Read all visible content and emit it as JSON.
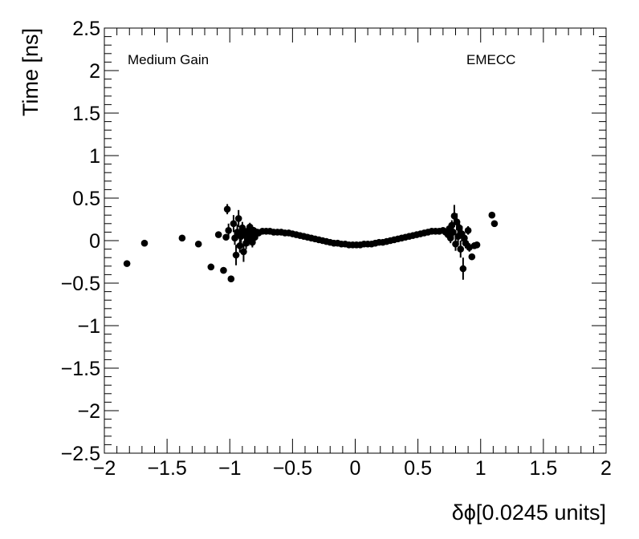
{
  "chart_data": {
    "type": "scatter",
    "xlabel": "δϕ[0.0245 units]",
    "ylabel": "Time [ns]",
    "xlim": [
      -2,
      2
    ],
    "ylim": [
      -2.5,
      2.5
    ],
    "x_ticks": [
      "−2",
      "−1.5",
      "−1",
      "−0.5",
      "0",
      "0.5",
      "1",
      "1.5",
      "2"
    ],
    "y_ticks": [
      "−2.5",
      "−2",
      "−1.5",
      "−1",
      "−0.5",
      "0",
      "0.5",
      "1",
      "1.5",
      "2",
      "2.5"
    ],
    "annotations": {
      "left": "Medium Gain",
      "right": "EMECC"
    },
    "grid": false,
    "marker_color": "#000000",
    "points": [
      {
        "x": -1.82,
        "y": -0.27,
        "err": 0
      },
      {
        "x": -1.68,
        "y": -0.03,
        "err": 0
      },
      {
        "x": -1.38,
        "y": 0.03,
        "err": 0
      },
      {
        "x": -1.25,
        "y": -0.04,
        "err": 0
      },
      {
        "x": -1.15,
        "y": -0.31,
        "err": 0
      },
      {
        "x": -1.09,
        "y": 0.07,
        "err": 0
      },
      {
        "x": -1.05,
        "y": -0.35,
        "err": 0
      },
      {
        "x": -1.03,
        "y": 0.04,
        "err": 0
      },
      {
        "x": -1.02,
        "y": 0.37,
        "err": 0.06
      },
      {
        "x": -1.01,
        "y": 0.12,
        "err": 0.08
      },
      {
        "x": -0.99,
        "y": -0.45,
        "err": 0
      },
      {
        "x": -0.97,
        "y": 0.2,
        "err": 0.1
      },
      {
        "x": -0.96,
        "y": 0.03,
        "err": 0.08
      },
      {
        "x": -0.95,
        "y": -0.17,
        "err": 0.12
      },
      {
        "x": -0.94,
        "y": 0.1,
        "err": 0.09
      },
      {
        "x": -0.93,
        "y": 0.26,
        "err": 0.1
      },
      {
        "x": -0.92,
        "y": -0.06,
        "err": 0.08
      },
      {
        "x": -0.91,
        "y": 0.05,
        "err": 0.09
      },
      {
        "x": -0.9,
        "y": 0.15,
        "err": 0.07
      },
      {
        "x": -0.89,
        "y": -0.13,
        "err": 0.12
      },
      {
        "x": -0.88,
        "y": 0.08,
        "err": 0.08
      },
      {
        "x": -0.87,
        "y": -0.03,
        "err": 0.07
      },
      {
        "x": -0.86,
        "y": 0.11,
        "err": 0.06
      },
      {
        "x": -0.85,
        "y": 0.02,
        "err": 0.08
      },
      {
        "x": -0.84,
        "y": 0.16,
        "err": 0.05
      },
      {
        "x": -0.83,
        "y": 0.06,
        "err": 0.05
      },
      {
        "x": -0.82,
        "y": -0.02,
        "err": 0.06
      },
      {
        "x": -0.81,
        "y": 0.12,
        "err": 0.04
      },
      {
        "x": -0.8,
        "y": 0.04,
        "err": 0.05
      },
      {
        "x": -0.79,
        "y": 0.08,
        "err": 0.03
      },
      {
        "x": -0.78,
        "y": 0.1,
        "err": 0.03
      },
      {
        "x": -0.77,
        "y": 0.09,
        "err": 0.02
      },
      {
        "x": -0.74,
        "y": 0.11,
        "err": 0
      },
      {
        "x": -0.71,
        "y": 0.11,
        "err": 0
      },
      {
        "x": -0.68,
        "y": 0.11,
        "err": 0
      },
      {
        "x": -0.65,
        "y": 0.1,
        "err": 0
      },
      {
        "x": -0.62,
        "y": 0.1,
        "err": 0
      },
      {
        "x": -0.59,
        "y": 0.1,
        "err": 0
      },
      {
        "x": -0.56,
        "y": 0.09,
        "err": 0
      },
      {
        "x": -0.53,
        "y": 0.09,
        "err": 0
      },
      {
        "x": -0.5,
        "y": 0.08,
        "err": 0
      },
      {
        "x": -0.47,
        "y": 0.07,
        "err": 0
      },
      {
        "x": -0.44,
        "y": 0.06,
        "err": 0
      },
      {
        "x": -0.41,
        "y": 0.05,
        "err": 0
      },
      {
        "x": -0.38,
        "y": 0.04,
        "err": 0
      },
      {
        "x": -0.35,
        "y": 0.03,
        "err": 0
      },
      {
        "x": -0.32,
        "y": 0.02,
        "err": 0
      },
      {
        "x": -0.29,
        "y": 0.01,
        "err": 0
      },
      {
        "x": -0.26,
        "y": 0.0,
        "err": 0
      },
      {
        "x": -0.23,
        "y": -0.01,
        "err": 0
      },
      {
        "x": -0.2,
        "y": -0.02,
        "err": 0
      },
      {
        "x": -0.17,
        "y": -0.03,
        "err": 0
      },
      {
        "x": -0.14,
        "y": -0.03,
        "err": 0
      },
      {
        "x": -0.11,
        "y": -0.04,
        "err": 0
      },
      {
        "x": -0.08,
        "y": -0.04,
        "err": 0
      },
      {
        "x": -0.05,
        "y": -0.05,
        "err": 0
      },
      {
        "x": -0.02,
        "y": -0.05,
        "err": 0
      },
      {
        "x": 0.01,
        "y": -0.05,
        "err": 0
      },
      {
        "x": 0.04,
        "y": -0.05,
        "err": 0
      },
      {
        "x": 0.07,
        "y": -0.04,
        "err": 0
      },
      {
        "x": 0.1,
        "y": -0.04,
        "err": 0
      },
      {
        "x": 0.13,
        "y": -0.04,
        "err": 0
      },
      {
        "x": 0.16,
        "y": -0.03,
        "err": 0
      },
      {
        "x": 0.19,
        "y": -0.02,
        "err": 0
      },
      {
        "x": 0.22,
        "y": -0.02,
        "err": 0
      },
      {
        "x": 0.25,
        "y": -0.01,
        "err": 0
      },
      {
        "x": 0.28,
        "y": 0.0,
        "err": 0
      },
      {
        "x": 0.31,
        "y": 0.01,
        "err": 0
      },
      {
        "x": 0.34,
        "y": 0.02,
        "err": 0
      },
      {
        "x": 0.37,
        "y": 0.03,
        "err": 0
      },
      {
        "x": 0.4,
        "y": 0.04,
        "err": 0
      },
      {
        "x": 0.43,
        "y": 0.05,
        "err": 0
      },
      {
        "x": 0.46,
        "y": 0.06,
        "err": 0
      },
      {
        "x": 0.49,
        "y": 0.07,
        "err": 0
      },
      {
        "x": 0.52,
        "y": 0.08,
        "err": 0
      },
      {
        "x": 0.55,
        "y": 0.09,
        "err": 0
      },
      {
        "x": 0.58,
        "y": 0.1,
        "err": 0
      },
      {
        "x": 0.61,
        "y": 0.11,
        "err": 0
      },
      {
        "x": 0.64,
        "y": 0.11,
        "err": 0
      },
      {
        "x": 0.67,
        "y": 0.11,
        "err": 0
      },
      {
        "x": 0.7,
        "y": 0.12,
        "err": 0.02
      },
      {
        "x": 0.72,
        "y": 0.1,
        "err": 0.03
      },
      {
        "x": 0.74,
        "y": 0.07,
        "err": 0.04
      },
      {
        "x": 0.75,
        "y": 0.14,
        "err": 0.05
      },
      {
        "x": 0.76,
        "y": 0.03,
        "err": 0.06
      },
      {
        "x": 0.77,
        "y": 0.18,
        "err": 0.06
      },
      {
        "x": 0.78,
        "y": 0.1,
        "err": 0.08
      },
      {
        "x": 0.79,
        "y": 0.29,
        "err": 0.13
      },
      {
        "x": 0.8,
        "y": -0.04,
        "err": 0.08
      },
      {
        "x": 0.81,
        "y": 0.22,
        "err": 0.1
      },
      {
        "x": 0.82,
        "y": 0.05,
        "err": 0.09
      },
      {
        "x": 0.83,
        "y": 0.15,
        "err": 0.08
      },
      {
        "x": 0.84,
        "y": -0.1,
        "err": 0.1
      },
      {
        "x": 0.85,
        "y": 0.08,
        "err": 0.09
      },
      {
        "x": 0.86,
        "y": -0.33,
        "err": 0.13
      },
      {
        "x": 0.87,
        "y": 0.03,
        "err": 0.07
      },
      {
        "x": 0.88,
        "y": -0.03,
        "err": 0.06
      },
      {
        "x": 0.9,
        "y": 0.12,
        "err": 0.05
      },
      {
        "x": 0.91,
        "y": -0.08,
        "err": 0.05
      },
      {
        "x": 0.93,
        "y": -0.19,
        "err": 0
      },
      {
        "x": 0.95,
        "y": -0.06,
        "err": 0
      },
      {
        "x": 0.97,
        "y": -0.05,
        "err": 0
      },
      {
        "x": 1.09,
        "y": 0.3,
        "err": 0
      },
      {
        "x": 1.11,
        "y": 0.2,
        "err": 0
      }
    ]
  }
}
